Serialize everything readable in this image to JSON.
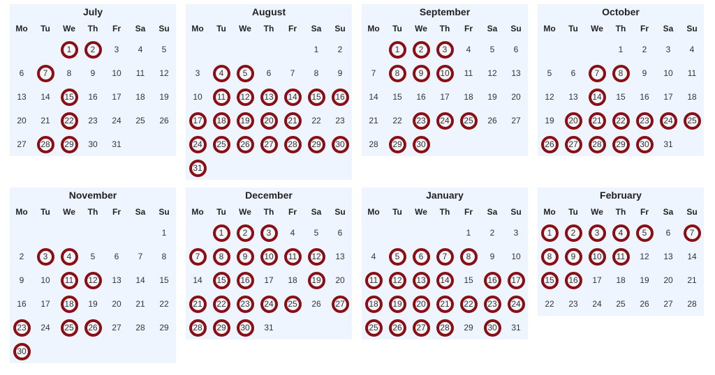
{
  "colors": {
    "highlight_ring": "#8a0f14",
    "panel_bg": "#eef5fe"
  },
  "weekday_labels": [
    "Mo",
    "Tu",
    "We",
    "Th",
    "Fr",
    "Sa",
    "Su"
  ],
  "months": [
    {
      "name": "July",
      "offset": 2,
      "days": 31,
      "highlighted": [
        1,
        2,
        7,
        15,
        22,
        28,
        29
      ]
    },
    {
      "name": "August",
      "offset": 5,
      "days": 31,
      "highlighted": [
        4,
        5,
        11,
        12,
        13,
        14,
        15,
        16,
        17,
        18,
        19,
        20,
        21,
        24,
        25,
        26,
        27,
        28,
        29,
        30,
        31
      ]
    },
    {
      "name": "September",
      "offset": 1,
      "days": 30,
      "highlighted": [
        1,
        2,
        3,
        8,
        9,
        10,
        23,
        24,
        25,
        29,
        30
      ]
    },
    {
      "name": "October",
      "offset": 3,
      "days": 31,
      "highlighted": [
        7,
        8,
        14,
        20,
        21,
        22,
        23,
        24,
        25,
        26,
        27,
        28,
        29,
        30
      ]
    },
    {
      "name": "November",
      "offset": 6,
      "days": 30,
      "highlighted": [
        3,
        4,
        11,
        12,
        18,
        23,
        25,
        26,
        30
      ]
    },
    {
      "name": "December",
      "offset": 1,
      "days": 31,
      "highlighted": [
        1,
        2,
        3,
        7,
        8,
        9,
        10,
        11,
        12,
        15,
        16,
        19,
        21,
        22,
        23,
        24,
        25,
        27,
        28,
        29,
        30
      ]
    },
    {
      "name": "January",
      "offset": 4,
      "days": 31,
      "highlighted": [
        5,
        6,
        7,
        8,
        11,
        12,
        13,
        14,
        16,
        17,
        18,
        19,
        20,
        21,
        22,
        23,
        24,
        25,
        26,
        27,
        28,
        30
      ]
    },
    {
      "name": "February",
      "offset": 0,
      "days": 28,
      "highlighted": [
        1,
        2,
        3,
        4,
        5,
        7,
        8,
        9,
        10,
        11,
        15,
        16
      ]
    }
  ]
}
